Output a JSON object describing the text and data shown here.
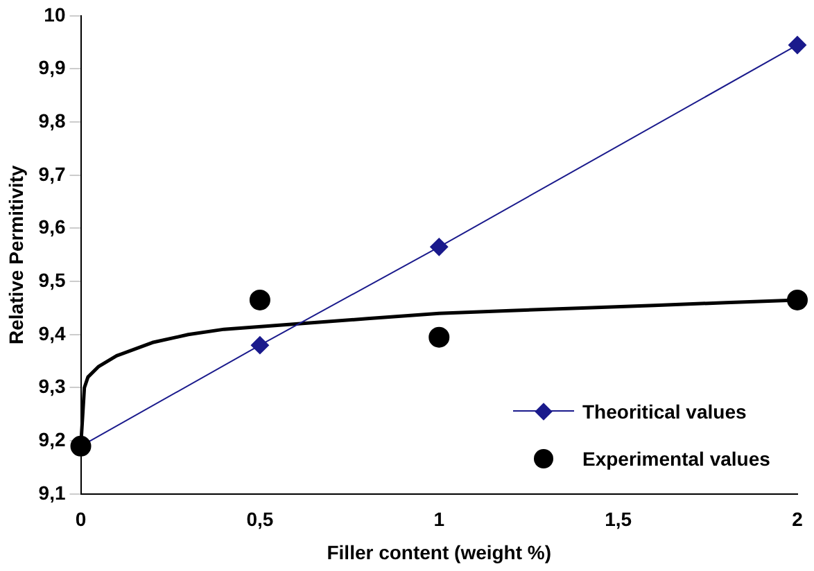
{
  "chart_data": {
    "type": "line",
    "xlabel": "Filler content (weight %)",
    "ylabel": "Relative Permitivity",
    "xlim": [
      0,
      2
    ],
    "xticks": [
      0,
      {
        "value": 0.5,
        "label": "0,5"
      },
      1,
      {
        "value": 1.5,
        "label": "1,5"
      },
      2
    ],
    "ylim": [
      9.1,
      10
    ],
    "yticks": [
      {
        "value": 9.1,
        "label": "9,1"
      },
      {
        "value": 9.2,
        "label": "9,2"
      },
      {
        "value": 9.3,
        "label": "9,3"
      },
      {
        "value": 9.4,
        "label": "9,4"
      },
      {
        "value": 9.5,
        "label": "9,5"
      },
      {
        "value": 9.6,
        "label": "9,6"
      },
      {
        "value": 9.7,
        "label": "9,7"
      },
      {
        "value": 9.8,
        "label": "9,8"
      },
      {
        "value": 9.9,
        "label": "9,9"
      },
      10
    ],
    "grid": false,
    "legend": "bottom right",
    "series": [
      {
        "name": "Theoritical values",
        "type": "line",
        "marker": "diamond",
        "color": "#1a1a8c",
        "x": [
          0,
          0.5,
          1,
          2
        ],
        "values": [
          9.19,
          9.38,
          9.565,
          9.945
        ]
      },
      {
        "name": "Experimental values",
        "type": "scatter",
        "marker": "circle",
        "color": "#000000",
        "x": [
          0,
          0.5,
          1,
          2
        ],
        "values": [
          9.19,
          9.465,
          9.395,
          9.465
        ]
      },
      {
        "type": "line",
        "marker": "none",
        "color": "#000000",
        "x": [
          0,
          0.01,
          0.02,
          0.05,
          0.1,
          0.2,
          0.3,
          0.4,
          0.6,
          0.8,
          1,
          1.2,
          1.4,
          1.6,
          1.8,
          2
        ],
        "values": [
          9.19,
          9.3,
          9.32,
          9.34,
          9.36,
          9.385,
          9.4,
          9.41,
          9.42,
          9.43,
          9.44,
          9.445,
          9.45,
          9.455,
          9.46,
          9.465
        ]
      }
    ]
  }
}
